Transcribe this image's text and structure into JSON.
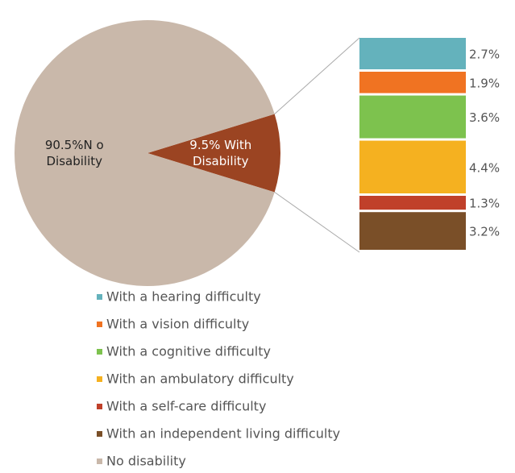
{
  "chart_data": {
    "type": "pie-of-bar",
    "pie": {
      "categories": [
        "No disability",
        null
      ],
      "values": [
        90.5,
        9.5
      ],
      "value_labels": [
        "90.5%N o Disability",
        "9.5% With Disability"
      ],
      "colors": [
        "#c9b8aa",
        "#9b4422"
      ],
      "label_colors": [
        "#222222",
        "#ffffff"
      ]
    },
    "bar": {
      "categories": [
        "With a hearing difficulty",
        "With a vision difficulty",
        "With a cognitive difficulty",
        "With an ambulatory difficulty",
        "With a self-care difficulty",
        "With an independent living difficulty"
      ],
      "values": [
        2.7,
        1.9,
        3.6,
        4.4,
        1.3,
        3.2
      ],
      "value_labels": [
        "2.7%",
        "1.9%",
        "3.6%",
        "4.4%",
        "1.3%",
        "3.2%"
      ],
      "colors": [
        "#64b2bc",
        "#f07322",
        "#7dc24e",
        "#f5b120",
        "#c0402a",
        "#7a4f28"
      ]
    }
  }
}
